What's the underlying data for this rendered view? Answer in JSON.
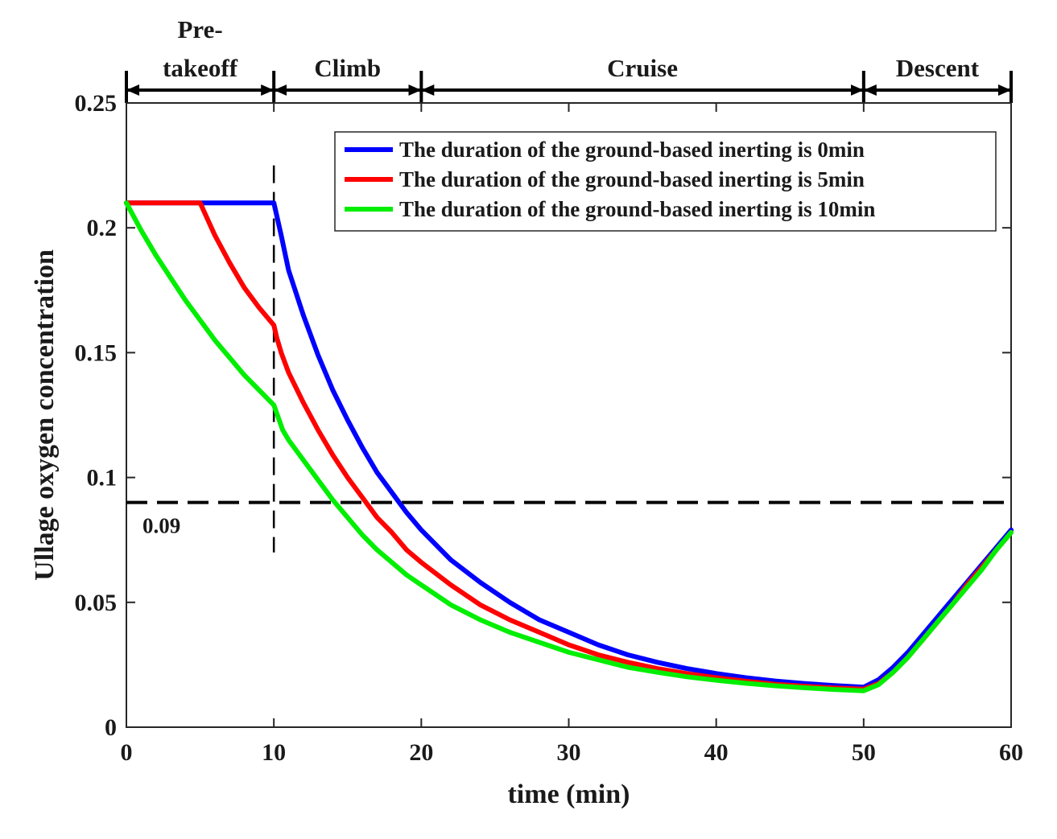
{
  "chart_data": {
    "type": "line",
    "title": "",
    "xlabel": "time (min)",
    "ylabel": "Ullage oxygen concentration",
    "xlim": [
      0,
      60
    ],
    "ylim": [
      0,
      0.25
    ],
    "xticks": [
      0,
      10,
      20,
      30,
      40,
      50,
      60
    ],
    "yticks": [
      0,
      0.05,
      0.1,
      0.15,
      0.2,
      0.25
    ],
    "xtick_labels": [
      "0",
      "10",
      "20",
      "30",
      "40",
      "50",
      "60"
    ],
    "ytick_labels": [
      "0",
      "0.05",
      "0.1",
      "0.15",
      "0.2",
      "0.25"
    ],
    "grid": false,
    "legend_position": "top-right",
    "series": [
      {
        "name": "The duration of the ground-based inerting is 0min",
        "color": "#0000ff",
        "x": [
          0,
          5,
          10,
          10.5,
          11,
          12,
          13,
          14,
          15,
          16,
          17,
          18,
          19,
          20,
          22,
          24,
          26,
          28,
          30,
          32,
          34,
          36,
          38,
          40,
          42,
          44,
          46,
          48,
          50,
          51,
          52,
          53,
          54,
          55,
          56,
          57,
          58,
          59,
          60
        ],
        "y": [
          0.21,
          0.21,
          0.21,
          0.197,
          0.183,
          0.165,
          0.149,
          0.135,
          0.123,
          0.112,
          0.102,
          0.094,
          0.086,
          0.079,
          0.067,
          0.058,
          0.05,
          0.043,
          0.038,
          0.033,
          0.029,
          0.026,
          0.0235,
          0.0215,
          0.0198,
          0.0185,
          0.0175,
          0.0167,
          0.016,
          0.019,
          0.024,
          0.03,
          0.037,
          0.044,
          0.051,
          0.058,
          0.065,
          0.072,
          0.079
        ]
      },
      {
        "name": "The duration of the ground-based inerting is 5min",
        "color": "#ff0000",
        "x": [
          0,
          5,
          6,
          7,
          8,
          9,
          10,
          10.2,
          10.5,
          11,
          12,
          13,
          14,
          15,
          16,
          17,
          18,
          19,
          20,
          22,
          24,
          26,
          28,
          30,
          32,
          34,
          36,
          38,
          40,
          42,
          44,
          46,
          48,
          50,
          51,
          52,
          53,
          54,
          55,
          56,
          57,
          58,
          59,
          60
        ],
        "y": [
          0.21,
          0.21,
          0.197,
          0.186,
          0.176,
          0.168,
          0.161,
          0.156,
          0.15,
          0.142,
          0.13,
          0.119,
          0.109,
          0.1,
          0.092,
          0.084,
          0.078,
          0.071,
          0.066,
          0.057,
          0.049,
          0.043,
          0.038,
          0.033,
          0.029,
          0.026,
          0.0235,
          0.0215,
          0.0198,
          0.0184,
          0.0172,
          0.0164,
          0.0157,
          0.0152,
          0.0175,
          0.022,
          0.028,
          0.035,
          0.042,
          0.049,
          0.057,
          0.064,
          0.071,
          0.078
        ]
      },
      {
        "name": "The duration of the ground-based inerting is 10min",
        "color": "#00ee00",
        "x": [
          0,
          1,
          2,
          3,
          4,
          5,
          6,
          7,
          8,
          9,
          10,
          10.3,
          10.6,
          11,
          12,
          13,
          14,
          15,
          16,
          17,
          18,
          19,
          20,
          22,
          24,
          26,
          28,
          30,
          32,
          34,
          36,
          38,
          40,
          42,
          44,
          46,
          48,
          50,
          51,
          52,
          53,
          54,
          55,
          56,
          57,
          58,
          59,
          60
        ],
        "y": [
          0.21,
          0.199,
          0.189,
          0.18,
          0.171,
          0.163,
          0.155,
          0.148,
          0.141,
          0.135,
          0.129,
          0.124,
          0.119,
          0.115,
          0.107,
          0.099,
          0.091,
          0.084,
          0.077,
          0.071,
          0.066,
          0.061,
          0.057,
          0.049,
          0.043,
          0.038,
          0.034,
          0.03,
          0.027,
          0.024,
          0.022,
          0.0202,
          0.0188,
          0.0176,
          0.0166,
          0.0158,
          0.0151,
          0.0146,
          0.017,
          0.022,
          0.028,
          0.035,
          0.042,
          0.049,
          0.056,
          0.063,
          0.071,
          0.078
        ]
      }
    ],
    "reference_lines": [
      {
        "orientation": "horizontal",
        "value": 0.09,
        "label": "0.09",
        "style": "dashed"
      },
      {
        "orientation": "vertical",
        "value": 10,
        "y_range": [
          0.07,
          0.225
        ],
        "style": "dashed"
      }
    ],
    "phases": [
      {
        "label_line1": "Pre-",
        "label_line2": "takeoff",
        "start": 0,
        "end": 10
      },
      {
        "label_line1": "",
        "label_line2": "Climb",
        "start": 10,
        "end": 20
      },
      {
        "label_line1": "",
        "label_line2": "Cruise",
        "start": 20,
        "end": 50
      },
      {
        "label_line1": "",
        "label_line2": "Descent",
        "start": 50,
        "end": 60
      }
    ]
  }
}
